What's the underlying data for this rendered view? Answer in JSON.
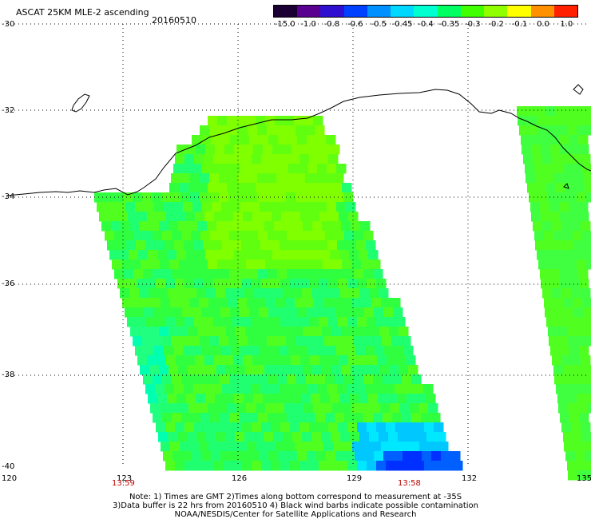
{
  "header": {
    "title": "ASCAT 25KM MLE-2 ascending",
    "date": "20160510"
  },
  "colorbar": {
    "labels": [
      "-15.0",
      "-1.0",
      "-0.8",
      "-0.6",
      "-0.5",
      "-0.45",
      "-0.4",
      "-0.35",
      "-0.3",
      "-0.2",
      "-0.1",
      "0.0",
      "1.0"
    ],
    "colors": [
      "#1a0033",
      "#5a0090",
      "#3010d0",
      "#0040ff",
      "#0090ff",
      "#00d8ff",
      "#00ffd0",
      "#00ff60",
      "#40ff00",
      "#90ff00",
      "#ffff00",
      "#ff9000",
      "#ff2000"
    ]
  },
  "axes": {
    "lat_labels": [
      "-30",
      "-32",
      "-34",
      "-36",
      "-38",
      "-40"
    ],
    "lon_labels": [
      "120",
      "123",
      "126",
      "129",
      "132",
      "135"
    ]
  },
  "times": {
    "left": "13:59",
    "right": "13:58"
  },
  "notes": {
    "line1": "Note: 1) Times are GMT 2)Times along bottom correspond to measurement at -35S",
    "line2": "3)Data buffer is 22 hrs from 20160510 4) Black wind barbs indicate possible contamination",
    "line3": "NOAA/NESDIS/Center for Satellite Applications and Research"
  }
}
